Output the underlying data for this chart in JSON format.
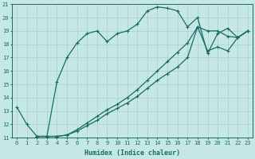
{
  "xlabel": "Humidex (Indice chaleur)",
  "xlim": [
    -0.5,
    23.5
  ],
  "ylim": [
    11,
    21
  ],
  "yticks": [
    11,
    12,
    13,
    14,
    15,
    16,
    17,
    18,
    19,
    20,
    21
  ],
  "xticks": [
    0,
    1,
    2,
    3,
    4,
    5,
    6,
    7,
    8,
    9,
    10,
    11,
    12,
    13,
    14,
    15,
    16,
    17,
    18,
    19,
    20,
    21,
    22,
    23
  ],
  "bg_color": "#c5e8e5",
  "grid_color": "#aacfcc",
  "line_color": "#1a6b65",
  "line1_x": [
    0,
    1,
    2,
    3,
    4,
    5,
    6,
    7,
    8,
    9,
    10,
    11,
    12,
    13,
    14,
    15,
    16,
    17,
    18,
    19,
    20,
    21,
    22,
    23
  ],
  "line1_y": [
    13.3,
    12.0,
    11.1,
    11.1,
    15.2,
    17.0,
    18.1,
    18.8,
    19.0,
    18.2,
    18.8,
    19.0,
    19.5,
    20.5,
    20.8,
    20.7,
    20.5,
    19.3,
    20.0,
    17.3,
    18.8,
    19.2,
    18.5,
    19.0
  ],
  "line2_x": [
    2,
    3,
    4,
    5,
    6,
    7,
    8,
    9,
    10,
    11,
    12,
    13,
    14,
    15,
    16,
    17,
    18,
    19,
    20,
    21,
    22,
    23
  ],
  "line2_y": [
    11.1,
    11.1,
    11.1,
    11.2,
    11.5,
    11.9,
    12.3,
    12.8,
    13.2,
    13.6,
    14.1,
    14.7,
    15.3,
    15.8,
    16.3,
    17.0,
    19.3,
    19.0,
    19.0,
    18.6,
    18.5,
    19.0
  ],
  "line3_x": [
    2,
    3,
    4,
    5,
    6,
    7,
    8,
    9,
    10,
    11,
    12,
    13,
    14,
    15,
    16,
    17,
    18,
    19,
    20,
    21,
    22,
    23
  ],
  "line3_y": [
    11.1,
    11.1,
    11.1,
    11.2,
    11.6,
    12.1,
    12.6,
    13.1,
    13.5,
    14.0,
    14.6,
    15.3,
    16.0,
    16.7,
    17.4,
    18.1,
    19.3,
    17.5,
    17.8,
    17.5,
    18.5,
    19.0
  ],
  "tick_fontsize": 5,
  "xlabel_fontsize": 6,
  "marker_size": 3,
  "line_width": 0.9
}
